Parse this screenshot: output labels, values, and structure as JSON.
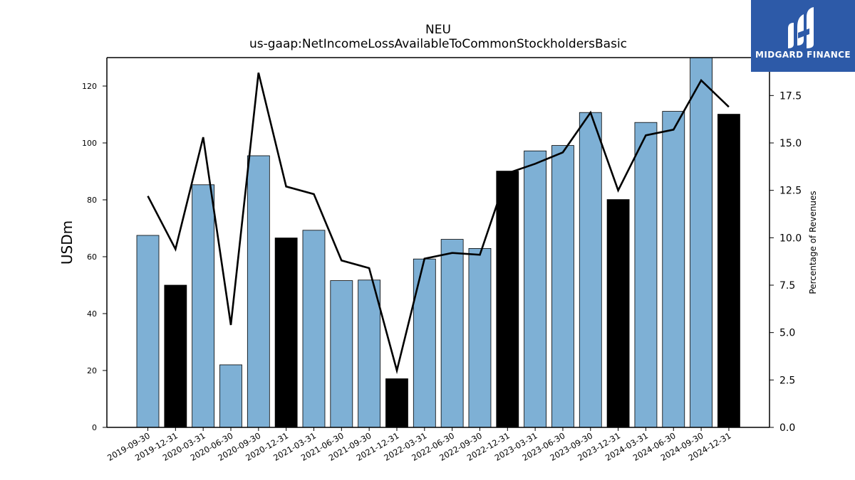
{
  "header": {
    "title": "NEU",
    "subtitle": "us-gaap:NetIncomeLossAvailableToCommonStockholdersBasic"
  },
  "logo": {
    "text": "MIDGARD FINANCE",
    "icon": "midgard-logo-icon",
    "background": "#2d5aa8"
  },
  "colors": {
    "bar_blue": "#7eb0d5",
    "bar_black": "#000000",
    "line": "#000000"
  },
  "chart_data": {
    "type": "bar",
    "ylabel": "USDm",
    "y2label": "Percentage of Revenues",
    "ylim": [
      0,
      130
    ],
    "y2lim": [
      0,
      19.5
    ],
    "yticks": [
      0,
      20,
      40,
      60,
      80,
      100,
      120
    ],
    "y2ticks": [
      "0.0",
      "2.5",
      "5.0",
      "7.5",
      "10.0",
      "12.5",
      "15.0",
      "17.5"
    ],
    "categories": [
      "2019-09-30",
      "2019-12-31",
      "2020-03-31",
      "2020-06-30",
      "2020-09-30",
      "2020-12-31",
      "2021-03-31",
      "2021-06-30",
      "2021-09-30",
      "2021-12-31",
      "2022-03-31",
      "2022-06-30",
      "2022-09-30",
      "2022-12-31",
      "2023-03-31",
      "2023-06-30",
      "2023-09-30",
      "2023-12-31",
      "2024-03-31",
      "2024-06-30",
      "2024-09-30",
      "2024-12-31"
    ],
    "series": [
      {
        "type": "bar",
        "values": [
          67.5,
          50,
          85.3,
          22,
          95.5,
          66.6,
          69.3,
          51.6,
          51.8,
          17.1,
          59.2,
          66.1,
          62.9,
          90.1,
          97.2,
          99.1,
          110.7,
          80.1,
          107.2,
          111.1,
          130,
          110.1
        ],
        "highlight": [
          false,
          true,
          false,
          false,
          false,
          true,
          false,
          false,
          false,
          true,
          false,
          false,
          false,
          true,
          false,
          false,
          false,
          true,
          false,
          false,
          false,
          true
        ]
      },
      {
        "type": "line",
        "axis": "right",
        "values": [
          12.2,
          9.4,
          15.3,
          5.4,
          18.7,
          12.7,
          12.3,
          8.8,
          8.4,
          3.0,
          8.9,
          9.2,
          9.1,
          13.4,
          13.9,
          14.5,
          16.6,
          12.5,
          15.4,
          15.7,
          18.3,
          16.9
        ]
      }
    ]
  }
}
